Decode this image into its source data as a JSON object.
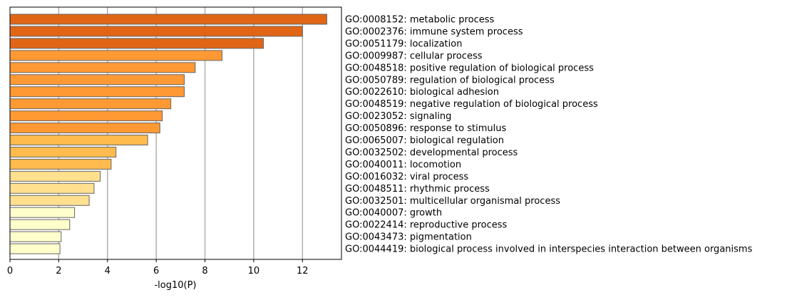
{
  "chart_data": {
    "type": "bar",
    "orientation": "horizontal",
    "title": "",
    "xlabel": "-log10(P)",
    "ylabel": "",
    "xlim": [
      0,
      13.6
    ],
    "xticks": [
      0,
      2,
      4,
      6,
      8,
      10,
      12
    ],
    "grid": "vertical",
    "legend": "none",
    "categories": [
      "GO:0008152: metabolic process",
      "GO:0002376: immune system process",
      "GO:0051179: localization",
      "GO:0009987: cellular process",
      "GO:0048518: positive regulation of biological process",
      "GO:0050789: regulation of biological process",
      "GO:0022610: biological adhesion",
      "GO:0048519: negative regulation of biological process",
      "GO:0023052: signaling",
      "GO:0050896: response to stimulus",
      "GO:0065007: biological regulation",
      "GO:0032502: developmental process",
      "GO:0040011: locomotion",
      "GO:0016032: viral process",
      "GO:0048511: rhythmic process",
      "GO:0032501: multicellular organismal process",
      "GO:0040007: growth",
      "GO:0022414: reproductive process",
      "GO:0043473: pigmentation",
      "GO:0044419: biological process involved in interspecies interaction between organisms"
    ],
    "values": [
      13.0,
      12.0,
      10.4,
      8.7,
      7.6,
      7.15,
      7.15,
      6.6,
      6.25,
      6.15,
      5.65,
      4.35,
      4.15,
      3.7,
      3.45,
      3.25,
      2.65,
      2.45,
      2.1,
      2.05
    ],
    "colors": [
      "#e06616",
      "#e06616",
      "#e06616",
      "#ff9933",
      "#ff9933",
      "#ff9933",
      "#ff9933",
      "#ff9933",
      "#ff9933",
      "#ff9933",
      "#ffbb4d",
      "#ffbb4d",
      "#ffbb4d",
      "#ffe08f",
      "#ffe08f",
      "#ffe08f",
      "#ffffcc",
      "#ffffcc",
      "#ffffcc",
      "#ffffcc"
    ],
    "edge_color": "#666666",
    "grid_color": "#b0b0b0"
  }
}
